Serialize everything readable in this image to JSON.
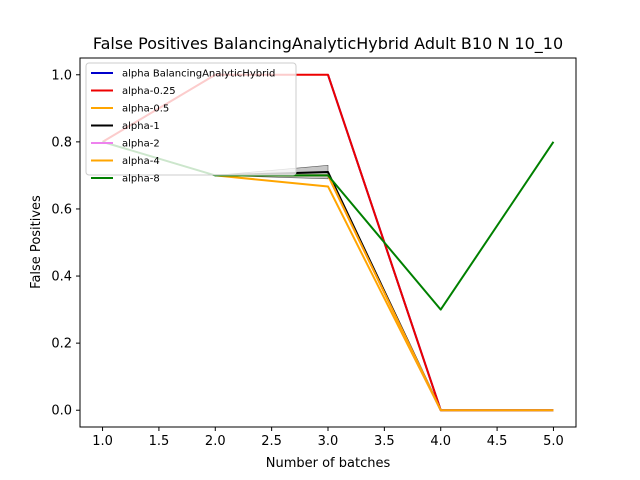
{
  "chart_data": {
    "type": "line",
    "title": "False Positives BalancingAnalyticHybrid Adult B10 N 10_10",
    "xlabel": "Number of batches",
    "ylabel": "False Positives",
    "xlim": [
      0.8,
      5.2
    ],
    "ylim": [
      -0.05,
      1.05
    ],
    "xticks": [
      1.0,
      1.5,
      2.0,
      2.5,
      3.0,
      3.5,
      4.0,
      4.5,
      5.0
    ],
    "xtick_labels": [
      "1.0",
      "1.5",
      "2.0",
      "2.5",
      "3.0",
      "3.5",
      "4.0",
      "4.5",
      "5.0"
    ],
    "yticks": [
      0.0,
      0.2,
      0.4,
      0.6,
      0.8,
      1.0
    ],
    "ytick_labels": [
      "0.0",
      "0.2",
      "0.4",
      "0.6",
      "0.8",
      "1.0"
    ],
    "grid": false,
    "legend_position": "upper-left",
    "x": [
      1,
      2,
      3,
      4,
      5
    ],
    "band": {
      "color": "#808080",
      "x": [
        2,
        3
      ],
      "low": [
        0.7,
        0.69
      ],
      "high": [
        0.7,
        0.73
      ]
    },
    "series": [
      {
        "name": "alpha BalancingAnalyticHybrid",
        "color": "#0000cc",
        "values": [
          null,
          null,
          1.0,
          0.0,
          0.0
        ]
      },
      {
        "name": "alpha-0.25",
        "color": "#ee0000",
        "values": [
          0.8,
          1.0,
          1.0,
          0.0,
          0.0
        ]
      },
      {
        "name": "alpha-0.5",
        "color": "#ffa500",
        "values": [
          null,
          0.7,
          0.667,
          0.0,
          0.0
        ]
      },
      {
        "name": "alpha-1",
        "color": "#000000",
        "values": [
          null,
          0.7,
          0.71,
          0.0,
          0.0
        ]
      },
      {
        "name": "alpha-2",
        "color": "#ee82ee",
        "values": [
          null,
          0.7,
          0.7,
          0.0,
          0.0
        ]
      },
      {
        "name": "alpha-4",
        "color": "#ffa500",
        "values": [
          null,
          0.7,
          0.7,
          0.0,
          0.0
        ]
      },
      {
        "name": "alpha-8",
        "color": "#008000",
        "values": [
          0.8,
          0.7,
          0.7,
          0.3,
          0.8
        ]
      }
    ]
  }
}
